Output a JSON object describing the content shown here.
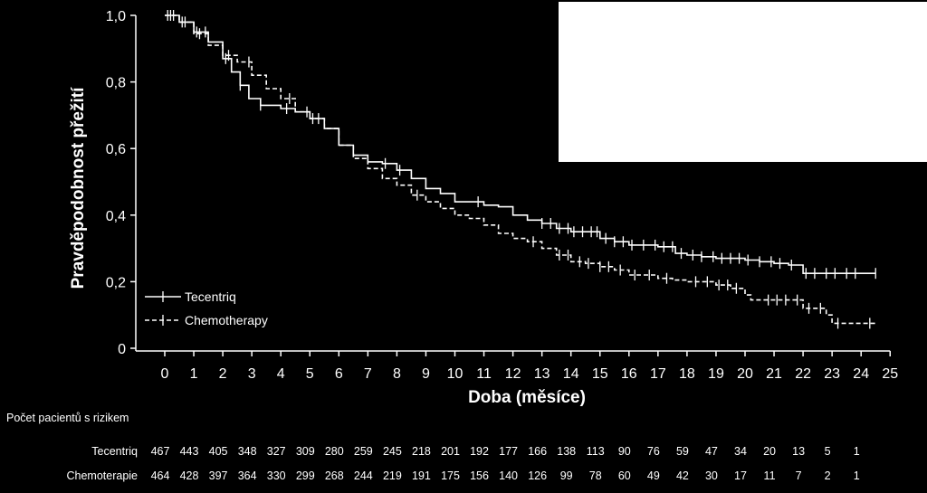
{
  "chart_data": {
    "type": "line",
    "subtype": "kaplan-meier",
    "title": "",
    "xlabel": "Doba (měsíce)",
    "ylabel": "Pravděpodobnost přežití",
    "xlim": [
      0,
      25
    ],
    "ylim": [
      0,
      1
    ],
    "x_ticks": [
      0,
      1,
      2,
      3,
      4,
      5,
      6,
      7,
      8,
      9,
      10,
      11,
      12,
      13,
      14,
      15,
      16,
      17,
      18,
      19,
      20,
      21,
      22,
      23,
      24,
      25
    ],
    "y_ticks": [
      0,
      0.2,
      0.4,
      0.6,
      0.8,
      1.0
    ],
    "y_tick_labels": [
      "0",
      "0,2",
      "0,4",
      "0,6",
      "0,8",
      "1,0"
    ],
    "grid": false,
    "legend_position": "bottom-left",
    "colors": {
      "background": "#000000",
      "line": "#ffffff"
    },
    "series": [
      {
        "name": "Tecentriq",
        "style": "solid",
        "points": [
          [
            0,
            1.0
          ],
          [
            0.5,
            0.98
          ],
          [
            1,
            0.95
          ],
          [
            1.5,
            0.92
          ],
          [
            2,
            0.87
          ],
          [
            2.3,
            0.83
          ],
          [
            2.6,
            0.79
          ],
          [
            2.9,
            0.75
          ],
          [
            3.3,
            0.73
          ],
          [
            4,
            0.72
          ],
          [
            4.5,
            0.71
          ],
          [
            5,
            0.69
          ],
          [
            5.5,
            0.66
          ],
          [
            6,
            0.61
          ],
          [
            6.5,
            0.58
          ],
          [
            7,
            0.56
          ],
          [
            7.5,
            0.555
          ],
          [
            8,
            0.535
          ],
          [
            8.5,
            0.51
          ],
          [
            9,
            0.48
          ],
          [
            9.5,
            0.465
          ],
          [
            10,
            0.44
          ],
          [
            11,
            0.43
          ],
          [
            11.5,
            0.425
          ],
          [
            12,
            0.4
          ],
          [
            12.5,
            0.385
          ],
          [
            13,
            0.375
          ],
          [
            13.5,
            0.36
          ],
          [
            14,
            0.35
          ],
          [
            15,
            0.33
          ],
          [
            15.5,
            0.32
          ],
          [
            16,
            0.31
          ],
          [
            17,
            0.305
          ],
          [
            17.6,
            0.285
          ],
          [
            18,
            0.28
          ],
          [
            18.5,
            0.275
          ],
          [
            19,
            0.27
          ],
          [
            20,
            0.265
          ],
          [
            20.5,
            0.26
          ],
          [
            21,
            0.255
          ],
          [
            21.5,
            0.25
          ],
          [
            22,
            0.225
          ],
          [
            23,
            0.225
          ],
          [
            24.5,
            0.225
          ]
        ],
        "censor_x": [
          0.1,
          0.3,
          0.6,
          1.1,
          1.4,
          2.1,
          2.6,
          3.3,
          4.2,
          4.9,
          5.3,
          7.6,
          8.1,
          10.8,
          13.0,
          13.3,
          13.6,
          13.9,
          14.1,
          14.4,
          14.7,
          14.9,
          15.2,
          15.5,
          15.8,
          16.1,
          16.5,
          16.9,
          17.2,
          17.5,
          17.8,
          18.2,
          18.5,
          18.9,
          19.2,
          19.5,
          19.8,
          20.1,
          20.5,
          20.9,
          21.2,
          21.6,
          22.1,
          22.4,
          22.8,
          23.1,
          23.5,
          23.8,
          24.5
        ]
      },
      {
        "name": "Chemotherapy",
        "style": "dashed",
        "points": [
          [
            0,
            1.0
          ],
          [
            0.5,
            0.98
          ],
          [
            1,
            0.945
          ],
          [
            1.5,
            0.91
          ],
          [
            2,
            0.88
          ],
          [
            2.5,
            0.86
          ],
          [
            3,
            0.82
          ],
          [
            3.5,
            0.78
          ],
          [
            4,
            0.75
          ],
          [
            4.5,
            0.71
          ],
          [
            5,
            0.69
          ],
          [
            5.5,
            0.66
          ],
          [
            6,
            0.61
          ],
          [
            6.5,
            0.57
          ],
          [
            7,
            0.54
          ],
          [
            7.5,
            0.51
          ],
          [
            8,
            0.49
          ],
          [
            8.5,
            0.46
          ],
          [
            9,
            0.44
          ],
          [
            9.5,
            0.42
          ],
          [
            10,
            0.4
          ],
          [
            10.5,
            0.39
          ],
          [
            11,
            0.37
          ],
          [
            11.5,
            0.345
          ],
          [
            12,
            0.33
          ],
          [
            12.5,
            0.32
          ],
          [
            13,
            0.3
          ],
          [
            13.5,
            0.28
          ],
          [
            14,
            0.26
          ],
          [
            14.5,
            0.255
          ],
          [
            15,
            0.245
          ],
          [
            15.5,
            0.235
          ],
          [
            16,
            0.22
          ],
          [
            17,
            0.21
          ],
          [
            17.5,
            0.205
          ],
          [
            18,
            0.2
          ],
          [
            19,
            0.19
          ],
          [
            19.5,
            0.18
          ],
          [
            20,
            0.16
          ],
          [
            20.2,
            0.145
          ],
          [
            21,
            0.145
          ],
          [
            22,
            0.12
          ],
          [
            22.8,
            0.1
          ],
          [
            23,
            0.075
          ],
          [
            24.5,
            0.075
          ]
        ],
        "censor_x": [
          0.2,
          0.7,
          1.2,
          2.2,
          2.9,
          4.3,
          5.1,
          8.7,
          12.7,
          13.6,
          13.9,
          14.3,
          14.6,
          15.0,
          15.3,
          15.7,
          16.2,
          16.7,
          17.3,
          18.3,
          18.7,
          19.1,
          19.4,
          19.7,
          20.8,
          21.1,
          21.4,
          21.8,
          22.2,
          22.6,
          23.2,
          24.3
        ]
      }
    ]
  },
  "risk_table": {
    "title": "Počet pacientů s rizikem",
    "timepoints": [
      0,
      1,
      2,
      3,
      4,
      5,
      6,
      7,
      8,
      9,
      10,
      11,
      12,
      13,
      14,
      15,
      16,
      17,
      18,
      19,
      20,
      21,
      22,
      23,
      24
    ],
    "rows": [
      {
        "label": "Tecentriq",
        "values": [
          "467",
          "443",
          "405",
          "348",
          "327",
          "309",
          "280",
          "259",
          "245",
          "218",
          "201",
          "192",
          "177",
          "166",
          "138",
          "113",
          "90",
          "76",
          "59",
          "47",
          "34",
          "20",
          "13",
          "5",
          "1"
        ]
      },
      {
        "label": "Chemoterapie",
        "values": [
          "464",
          "428",
          "397",
          "364",
          "330",
          "299",
          "268",
          "244",
          "219",
          "191",
          "175",
          "156",
          "140",
          "126",
          "99",
          "78",
          "60",
          "49",
          "42",
          "30",
          "17",
          "11",
          "7",
          "2",
          "1"
        ]
      }
    ]
  }
}
